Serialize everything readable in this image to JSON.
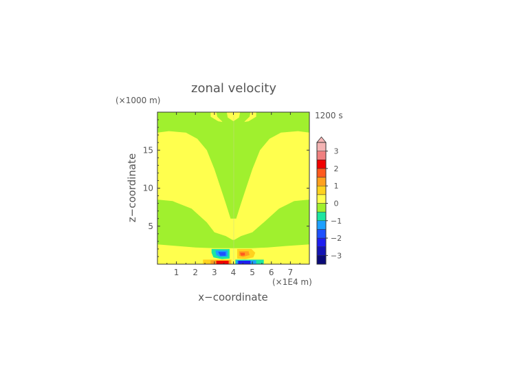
{
  "chart_data": {
    "type": "heatmap",
    "title": "zonal velocity",
    "xlabel": "x−coordinate",
    "ylabel": "z−coordinate",
    "x_unit": "(×1E4 m)",
    "y_unit": "(×1000 m)",
    "time_label": "1200 s",
    "xlim": [
      0,
      8
    ],
    "ylim": [
      0,
      20
    ],
    "x_ticks": [
      1,
      2,
      3,
      4,
      5,
      6,
      7
    ],
    "y_ticks": [
      5,
      10,
      15
    ],
    "colorbar": {
      "range": [
        -3.5,
        3.5
      ],
      "step": 0.5,
      "tick_labels": [
        3,
        2,
        1,
        0,
        -1,
        -2,
        -3
      ],
      "extend_max": true,
      "colors": {
        "3.0": "#f4b4b4",
        "2.5": "#f08080",
        "2.0": "#f00000",
        "1.5": "#ff5a1e",
        "1.0": "#ffa01e",
        "0.5": "#ffd21e",
        "0.0": "#ffff4e",
        "-0.5": "#a0f02e",
        "-1.0": "#1ee6a0",
        "-1.5": "#1ea0ff",
        "-2.0": "#1e50ff",
        "-2.5": "#1e1ef0",
        "-3.0": "#1414b4",
        "-3.5": "#0a0a78"
      }
    },
    "background_color": "#ffff4e",
    "regions": [
      {
        "level": -0.5,
        "points": [
          [
            0,
            20
          ],
          [
            0,
            17.3
          ],
          [
            0.6,
            17.5
          ],
          [
            1.5,
            17.3
          ],
          [
            2.1,
            16.5
          ],
          [
            2.6,
            15
          ],
          [
            3.0,
            12.5
          ],
          [
            3.4,
            9.5
          ],
          [
            3.6,
            8
          ],
          [
            3.85,
            6
          ],
          [
            4.15,
            6
          ],
          [
            4.4,
            8
          ],
          [
            4.6,
            9.5
          ],
          [
            5.0,
            12.5
          ],
          [
            5.4,
            15
          ],
          [
            5.9,
            16.5
          ],
          [
            6.5,
            17.3
          ],
          [
            7.4,
            17.5
          ],
          [
            8,
            17.3
          ],
          [
            8,
            20
          ],
          [
            5.2,
            20
          ],
          [
            5.2,
            19.4
          ],
          [
            4.8,
            18.8
          ],
          [
            4.3,
            18.6
          ],
          [
            3.7,
            18.6
          ],
          [
            3.2,
            18.8
          ],
          [
            2.8,
            19.4
          ],
          [
            2.8,
            20
          ]
        ]
      },
      {
        "level": -0.5,
        "points": [
          [
            3.1,
            20
          ],
          [
            3.15,
            19.4
          ],
          [
            3.4,
            18.8
          ],
          [
            3.7,
            17.5
          ],
          [
            3.85,
            16
          ],
          [
            3.9,
            14
          ],
          [
            3.98,
            12.8
          ],
          [
            4.02,
            12.8
          ],
          [
            4.1,
            14
          ],
          [
            4.15,
            16
          ],
          [
            4.3,
            17.5
          ],
          [
            4.6,
            18.8
          ],
          [
            4.85,
            19.4
          ],
          [
            4.9,
            20
          ],
          [
            4.35,
            20
          ],
          [
            4.3,
            19.3
          ],
          [
            4.0,
            18.8
          ],
          [
            3.7,
            19.3
          ],
          [
            3.65,
            20
          ]
        ]
      },
      {
        "level": -0.5,
        "points": [
          [
            0,
            8.5
          ],
          [
            0.8,
            8.3
          ],
          [
            1.8,
            7.3
          ],
          [
            2.6,
            5.5
          ],
          [
            3.0,
            4.2
          ],
          [
            3.6,
            3.7
          ],
          [
            3.95,
            3.2
          ],
          [
            4.05,
            3.2
          ],
          [
            4.4,
            3.7
          ],
          [
            5.0,
            4.2
          ],
          [
            5.6,
            5.5
          ],
          [
            6.4,
            7.3
          ],
          [
            7.2,
            8.3
          ],
          [
            8,
            8.5
          ],
          [
            8,
            2.6
          ],
          [
            6.8,
            2.4
          ],
          [
            5.8,
            2.2
          ],
          [
            5.0,
            2.1
          ],
          [
            3.0,
            2.1
          ],
          [
            2.0,
            2.2
          ],
          [
            1.0,
            2.4
          ],
          [
            0,
            2.6
          ]
        ]
      },
      {
        "level": 0.5,
        "points": [
          [
            4.2,
            2.0
          ],
          [
            4.95,
            2.0
          ],
          [
            5.15,
            1.5
          ],
          [
            5.05,
            0.9
          ],
          [
            4.6,
            0.65
          ],
          [
            4.2,
            0.75
          ]
        ]
      },
      {
        "level": 1.0,
        "points": [
          [
            4.3,
            1.7
          ],
          [
            4.8,
            1.7
          ],
          [
            4.85,
            1.2
          ],
          [
            4.5,
            0.95
          ],
          [
            4.3,
            1.1
          ]
        ]
      },
      {
        "level": 1.5,
        "points": [
          [
            4.35,
            1.5
          ],
          [
            4.6,
            1.5
          ],
          [
            4.6,
            1.15
          ],
          [
            4.4,
            1.1
          ]
        ]
      },
      {
        "level": -1.0,
        "points": [
          [
            2.85,
            2.0
          ],
          [
            3.8,
            2.0
          ],
          [
            3.8,
            0.75
          ],
          [
            3.4,
            0.65
          ],
          [
            2.95,
            0.9
          ],
          [
            2.85,
            1.5
          ]
        ]
      },
      {
        "level": -1.5,
        "points": [
          [
            3.05,
            1.8
          ],
          [
            3.7,
            1.8
          ],
          [
            3.7,
            1.0
          ],
          [
            3.3,
            0.95
          ],
          [
            3.1,
            1.2
          ]
        ]
      },
      {
        "level": -2.0,
        "points": [
          [
            3.2,
            1.6
          ],
          [
            3.6,
            1.6
          ],
          [
            3.6,
            1.1
          ],
          [
            3.3,
            1.1
          ]
        ]
      },
      {
        "level": 0.5,
        "points": [
          [
            2.4,
            0.6
          ],
          [
            3.9,
            0.6
          ],
          [
            3.9,
            0
          ],
          [
            2.4,
            0
          ]
        ]
      },
      {
        "level": 1.0,
        "points": [
          [
            2.8,
            0.5
          ],
          [
            3.85,
            0.5
          ],
          [
            3.85,
            0
          ],
          [
            2.8,
            0
          ]
        ]
      },
      {
        "level": 2.0,
        "points": [
          [
            3.1,
            0.45
          ],
          [
            3.75,
            0.45
          ],
          [
            3.75,
            0
          ],
          [
            3.1,
            0
          ]
        ]
      },
      {
        "level": -1.0,
        "points": [
          [
            4.1,
            0.6
          ],
          [
            5.6,
            0.6
          ],
          [
            5.6,
            0
          ],
          [
            4.1,
            0
          ]
        ]
      },
      {
        "level": -1.5,
        "points": [
          [
            4.15,
            0.5
          ],
          [
            5.2,
            0.5
          ],
          [
            5.2,
            0
          ],
          [
            4.15,
            0
          ]
        ]
      },
      {
        "level": -2.5,
        "points": [
          [
            4.25,
            0.45
          ],
          [
            4.9,
            0.45
          ],
          [
            4.9,
            0
          ],
          [
            4.25,
            0
          ]
        ]
      }
    ]
  }
}
